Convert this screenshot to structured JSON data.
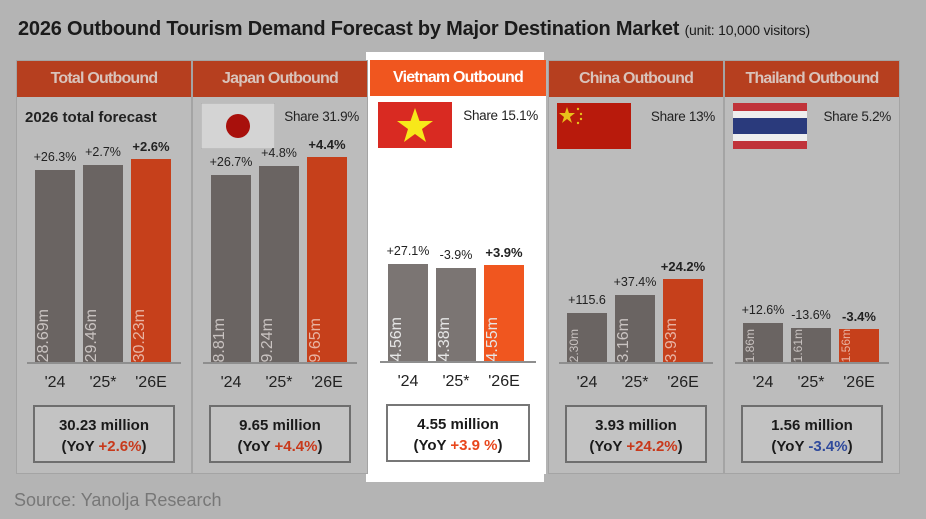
{
  "title": "2026 Outbound Tourism Demand Forecast by Major Destination Market",
  "unit": "(unit: 10,000 visitors)",
  "source": "Source: Yanolja Research",
  "colors": {
    "header": "#b63f1f",
    "highlight_header": "#f0561f",
    "bar_actual": "#6a6462",
    "bar_forecast": "#c6401b",
    "positive": "#c8391b",
    "negative": "#2f4a9c"
  },
  "chart_data": {
    "type": "bar",
    "categories": [
      "'24",
      "'25*",
      "'26E"
    ],
    "panels": [
      {
        "title": "Total Outbound",
        "subtitle": "2026 total forecast",
        "flag": "",
        "share": "",
        "values": [
          28.69,
          29.46,
          30.23
        ],
        "value_labels": [
          "28.69m",
          "29.46m",
          "30.23m"
        ],
        "changes": [
          "+26.3%",
          "+2.7%",
          "+2.6%"
        ],
        "summary": "30.23 million",
        "yoy_prefix": "(YoY ",
        "yoy": "+2.6%",
        "yoy_suffix": ")",
        "yoy_sign": "pos",
        "highlighted": false
      },
      {
        "title": "Japan Outbound",
        "subtitle": "",
        "flag": "japan-flag",
        "share": "Share 31.9%",
        "values": [
          8.81,
          9.24,
          9.65
        ],
        "value_labels": [
          "8.81m",
          "9.24m",
          "9.65m"
        ],
        "changes": [
          "+26.7%",
          "+4.8%",
          "+4.4%"
        ],
        "summary": "9.65 million",
        "yoy_prefix": "(YoY ",
        "yoy": "+4.4%",
        "yoy_suffix": ")",
        "yoy_sign": "pos",
        "highlighted": false
      },
      {
        "title": "Vietnam Outbound",
        "subtitle": "",
        "flag": "vietnam-flag",
        "share": "Share 15.1%",
        "values": [
          4.56,
          4.38,
          4.55
        ],
        "value_labels": [
          "4.56m",
          "4.38m",
          "4.55m"
        ],
        "changes": [
          "+27.1%",
          "-3.9%",
          "+3.9%"
        ],
        "summary": "4.55 million",
        "yoy_prefix": "(YoY ",
        "yoy": "+3.9 %",
        "yoy_suffix": ")",
        "yoy_sign": "pos",
        "highlighted": true
      },
      {
        "title": "China Outbound",
        "subtitle": "",
        "flag": "china-flag",
        "share": "Share 13%",
        "values": [
          2.3,
          3.16,
          3.93
        ],
        "value_labels": [
          "2.30m",
          "3.16m",
          "3.93m"
        ],
        "changes": [
          "+115.6",
          "+37.4%",
          "+24.2%"
        ],
        "summary": "3.93 million",
        "yoy_prefix": "(YoY ",
        "yoy": "+24.2%",
        "yoy_suffix": ")",
        "yoy_sign": "pos",
        "highlighted": false
      },
      {
        "title": "Thailand Outbound",
        "subtitle": "",
        "flag": "thailand-flag",
        "share": "Share 5.2%",
        "values": [
          1.86,
          1.61,
          1.56
        ],
        "value_labels": [
          "1.86m",
          "1.61m",
          "1.56m"
        ],
        "changes": [
          "+12.6%",
          "-13.6%",
          "-3.4%"
        ],
        "summary": "1.56 million",
        "yoy_prefix": "(YoY ",
        "yoy": "-3.4%",
        "yoy_suffix": ")",
        "yoy_sign": "neg",
        "highlighted": false
      }
    ]
  }
}
